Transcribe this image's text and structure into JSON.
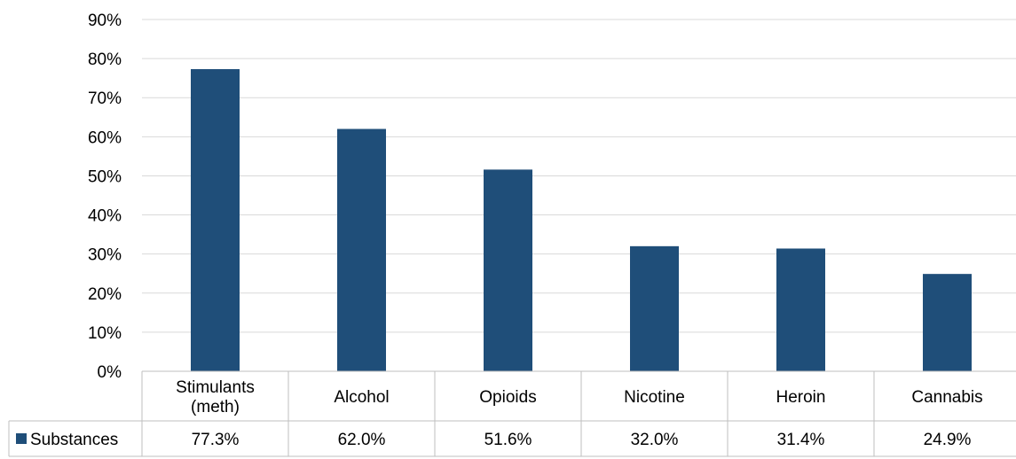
{
  "chart_data": {
    "type": "bar",
    "categories": [
      [
        "Stimulants",
        "(meth)"
      ],
      [
        "Alcohol"
      ],
      [
        "Opioids"
      ],
      [
        "Nicotine"
      ],
      [
        "Heroin"
      ],
      [
        "Cannabis"
      ]
    ],
    "series": [
      {
        "name": "Substances",
        "values": [
          77.3,
          62.0,
          51.6,
          32.0,
          31.4,
          24.9
        ],
        "labels": [
          "77.3%",
          "62.0%",
          "51.6%",
          "32.0%",
          "31.4%",
          "24.9%"
        ],
        "color": "#1f4e79"
      }
    ],
    "y_ticks": [
      "0%",
      "10%",
      "20%",
      "30%",
      "40%",
      "50%",
      "60%",
      "70%",
      "80%",
      "90%"
    ],
    "ylim": [
      0,
      90
    ],
    "grid": true,
    "legend_position": "data-table-left"
  }
}
